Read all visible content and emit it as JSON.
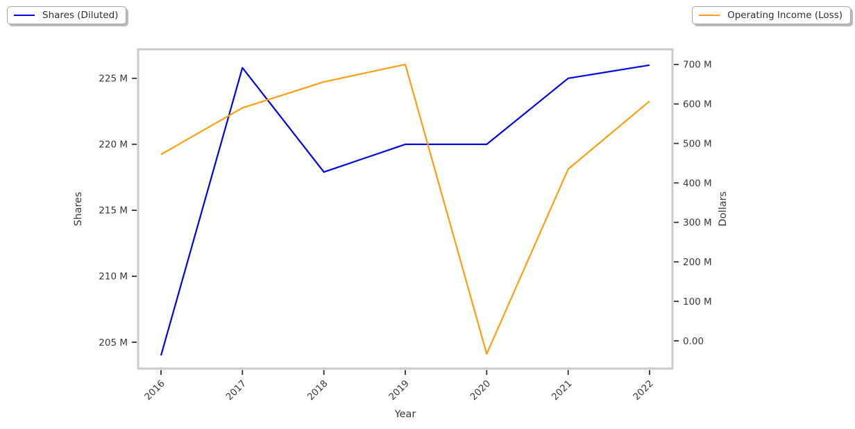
{
  "chart_data": {
    "type": "line",
    "title": "",
    "xlabel": "Year",
    "x": [
      2016,
      2017,
      2018,
      2019,
      2020,
      2021,
      2022
    ],
    "x_tick_labels": [
      "2016",
      "2017",
      "2018",
      "2019",
      "2020",
      "2021",
      "2022"
    ],
    "series": [
      {
        "name": "Shares (Diluted)",
        "axis": "left",
        "color": "#0000ee",
        "unit": "millions",
        "values": [
          204,
          225.8,
          217.9,
          220,
          220,
          225,
          226
        ]
      },
      {
        "name": "Operating Income (Loss)",
        "axis": "right",
        "color": "#ff9d0a",
        "unit": "millions",
        "values": [
          472,
          590,
          656,
          700,
          -33,
          435,
          607
        ]
      }
    ],
    "left_axis": {
      "label": "Shares",
      "tick_labels": [
        "225 M",
        "220 M",
        "215 M",
        "210 M",
        "205 M"
      ],
      "tick_values": [
        225,
        220,
        215,
        210,
        205
      ],
      "range": [
        203.0,
        227.2
      ]
    },
    "right_axis": {
      "label": "Dollars",
      "tick_labels": [
        "700 M",
        "600 M",
        "500 M",
        "400 M",
        "300 M",
        "200 M",
        "100 M",
        "0.00"
      ],
      "tick_values": [
        700,
        600,
        500,
        400,
        300,
        200,
        100,
        0
      ],
      "range": [
        -70.3,
        738.4
      ]
    },
    "legend": {
      "entries": [
        {
          "label": "Shares (Diluted)",
          "color": "#0000ee",
          "position": "top-left"
        },
        {
          "label": "Operating Income (Loss)",
          "color": "#ff9d0a",
          "position": "top-right"
        }
      ]
    },
    "grid": false,
    "colors": {
      "spine": "#cbcbcb",
      "tick_mark": "#333333",
      "text": "#383838"
    }
  }
}
